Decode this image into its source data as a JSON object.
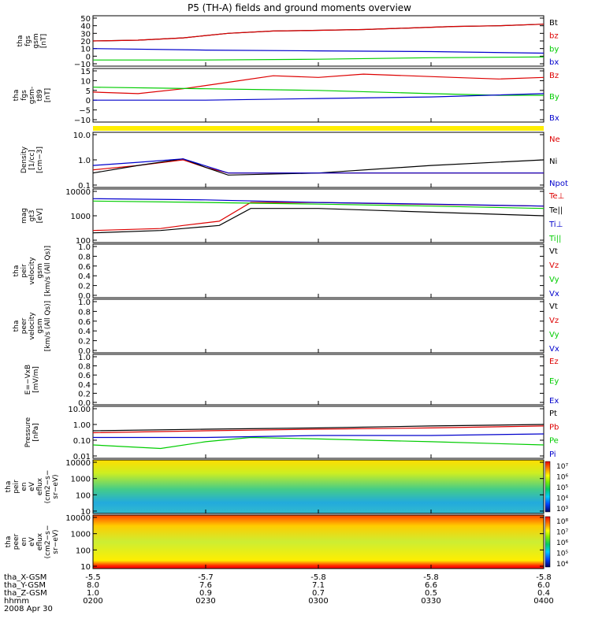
{
  "title": "P5 (TH-A) fields and ground moments overview",
  "date_label": "2008 Apr 30",
  "colors": {
    "black": "#000000",
    "red": "#dd0000",
    "green": "#00cc00",
    "blue": "#0000cc",
    "yellow": "#ffee00",
    "axis": "#000000"
  },
  "x_axis": {
    "row_labels": [
      "tha_X-GSM",
      "tha_Y-GSM",
      "tha_Z-GSM",
      "hhmm"
    ],
    "columns": [
      [
        "-5.5",
        "8.0",
        "1.0",
        "0200"
      ],
      [
        "-5.7",
        "7.6",
        "0.9",
        "0230"
      ],
      [
        "-5.8",
        "7.1",
        "0.7",
        "0300"
      ],
      [
        "-5.8",
        "6.6",
        "0.5",
        "0330"
      ],
      [
        "-5.8",
        "6.0",
        "0.4",
        "0400"
      ]
    ]
  },
  "chart_data": [
    {
      "type": "line",
      "panel": 1,
      "ylabel": [
        "tha",
        "fgs",
        "gsm",
        "[nT]"
      ],
      "yticks": [
        "50",
        "40",
        "30",
        "20",
        "10",
        "0",
        "−10"
      ],
      "ylim": [
        -10,
        50
      ],
      "series": [
        {
          "name": "Bt",
          "color": "#000000",
          "x": [
            0,
            0.1,
            0.2,
            0.3,
            0.4,
            0.5,
            0.6,
            0.7,
            0.8,
            0.9,
            1
          ],
          "y": [
            20,
            21,
            24,
            30,
            33,
            34,
            35,
            37,
            39,
            40,
            42
          ]
        },
        {
          "name": "bz",
          "color": "#dd0000",
          "x": [
            0,
            0.1,
            0.2,
            0.3,
            0.4,
            0.5,
            0.6,
            0.7,
            0.8,
            0.9,
            1
          ],
          "y": [
            20,
            21,
            24,
            30,
            33,
            34,
            35,
            37,
            39,
            40,
            42
          ]
        },
        {
          "name": "by",
          "color": "#00cc00",
          "x": [
            0,
            0.25,
            0.5,
            0.75,
            1
          ],
          "y": [
            -5,
            -5,
            -4,
            -2,
            -1
          ]
        },
        {
          "name": "bx",
          "color": "#0000cc",
          "x": [
            0,
            0.25,
            0.5,
            0.75,
            1
          ],
          "y": [
            10,
            8,
            7,
            6,
            4
          ]
        }
      ]
    },
    {
      "type": "line",
      "panel": 2,
      "ylabel": [
        "tha",
        "fgs",
        "gsm-",
        "t89",
        "[nT]"
      ],
      "yticks": [
        "15",
        "10",
        "5",
        "0",
        "−5",
        "−10"
      ],
      "ylim": [
        -15,
        15
      ],
      "series": [
        {
          "name": "Bz",
          "color": "#dd0000",
          "x": [
            0,
            0.1,
            0.2,
            0.3,
            0.4,
            0.5,
            0.6,
            0.7,
            0.8,
            0.9,
            1
          ],
          "y": [
            2,
            1,
            4,
            8,
            12,
            11,
            13,
            12,
            11,
            10,
            11
          ]
        },
        {
          "name": "By",
          "color": "#00cc00",
          "x": [
            0,
            0.25,
            0.5,
            0.75,
            0.9,
            1
          ],
          "y": [
            5,
            4,
            3,
            1,
            0,
            0
          ]
        },
        {
          "name": "Bx",
          "color": "#0000cc",
          "x": [
            0,
            0.25,
            0.5,
            0.75,
            1
          ],
          "y": [
            -3,
            -3,
            -2,
            -1,
            1
          ]
        }
      ]
    },
    {
      "type": "line",
      "panel": 3,
      "ylabel": [
        "Density",
        "[1/cc]",
        "[cm−3]"
      ],
      "yticks": [
        "10.0",
        "1.0",
        "0.1"
      ],
      "ylim": [
        0.1,
        10
      ],
      "yscale": "log",
      "series": [
        {
          "name": "Ne",
          "color": "#dd0000",
          "x": [
            0,
            0.1,
            0.2,
            0.25,
            0.3,
            0.5,
            1
          ],
          "y": [
            0.4,
            0.6,
            1.0,
            0.5,
            0.3,
            0.3,
            0.3
          ]
        },
        {
          "name": "Ni",
          "color": "#000000",
          "x": [
            0,
            0.1,
            0.2,
            0.25,
            0.3,
            0.5,
            0.75,
            1
          ],
          "y": [
            0.3,
            0.6,
            1.1,
            0.5,
            0.25,
            0.3,
            0.6,
            1.0
          ]
        },
        {
          "name": "Npot",
          "color": "#0000cc",
          "x": [
            0,
            0.1,
            0.2,
            0.3,
            0.5,
            1
          ],
          "y": [
            0.6,
            0.8,
            1.1,
            0.3,
            0.3,
            0.3
          ]
        }
      ]
    },
    {
      "type": "line",
      "panel": 4,
      "ylabel": [
        "mag",
        "gt3",
        "[eV]"
      ],
      "yticks": [
        "10000",
        "1000",
        "100"
      ],
      "ylim": [
        100,
        10000
      ],
      "yscale": "log",
      "series": [
        {
          "name": "Te⊥",
          "color": "#dd0000",
          "x": [
            0,
            0.15,
            0.2,
            0.28,
            0.35,
            0.5,
            0.7,
            1
          ],
          "y": [
            250,
            300,
            400,
            600,
            3500,
            3500,
            3000,
            2500
          ]
        },
        {
          "name": "Te||",
          "color": "#000000",
          "x": [
            0,
            0.15,
            0.2,
            0.28,
            0.35,
            0.5,
            0.7,
            1
          ],
          "y": [
            200,
            250,
            300,
            400,
            2000,
            2000,
            1500,
            1000
          ]
        },
        {
          "name": "Ti⊥",
          "color": "#0000cc",
          "x": [
            0,
            0.25,
            0.5,
            0.75,
            1
          ],
          "y": [
            5000,
            4500,
            3500,
            3000,
            2500
          ]
        },
        {
          "name": "Ti||",
          "color": "#00cc00",
          "x": [
            0,
            0.25,
            0.5,
            0.75,
            1
          ],
          "y": [
            4000,
            3500,
            3000,
            2500,
            2000
          ]
        }
      ]
    },
    {
      "type": "line",
      "panel": 5,
      "ylabel": [
        "tha",
        "peir",
        "velocity",
        "gsm",
        "[km/s (All Qs)]"
      ],
      "yticks": [
        "1.0",
        "0.8",
        "0.6",
        "0.4",
        "0.2",
        "0.0"
      ],
      "ylim": [
        0,
        1
      ],
      "series": [
        {
          "name": "Vt",
          "color": "#000000"
        },
        {
          "name": "Vz",
          "color": "#dd0000"
        },
        {
          "name": "Vy",
          "color": "#00cc00"
        },
        {
          "name": "Vx",
          "color": "#0000cc"
        }
      ]
    },
    {
      "type": "line",
      "panel": 6,
      "ylabel": [
        "tha",
        "peer",
        "velocity",
        "gsm",
        "[km/s (All Qs)]"
      ],
      "yticks": [
        "1.0",
        "0.8",
        "0.6",
        "0.4",
        "0.2",
        "0.0"
      ],
      "ylim": [
        0,
        1
      ],
      "series": [
        {
          "name": "Vt",
          "color": "#000000"
        },
        {
          "name": "Vz",
          "color": "#dd0000"
        },
        {
          "name": "Vy",
          "color": "#00cc00"
        },
        {
          "name": "Vx",
          "color": "#0000cc"
        }
      ]
    },
    {
      "type": "line",
      "panel": 7,
      "ylabel": [
        "E=−VxB",
        "[mV/m]"
      ],
      "yticks": [
        "1.0",
        "0.8",
        "0.6",
        "0.4",
        "0.2",
        "0.0"
      ],
      "ylim": [
        0,
        1
      ],
      "series": [
        {
          "name": "Ez",
          "color": "#dd0000"
        },
        {
          "name": "Ey",
          "color": "#00cc00"
        },
        {
          "name": "Ex",
          "color": "#0000cc"
        }
      ]
    },
    {
      "type": "line",
      "panel": 8,
      "ylabel": [
        "Pressure",
        "[nPa]"
      ],
      "yticks": [
        "10.00",
        "1.00",
        "0.10",
        "0.01"
      ],
      "ylim": [
        0.01,
        10
      ],
      "yscale": "log",
      "series": [
        {
          "name": "Pt",
          "color": "#000000",
          "x": [
            0,
            0.25,
            0.5,
            0.75,
            1
          ],
          "y": [
            0.4,
            0.5,
            0.6,
            0.8,
            1.0
          ]
        },
        {
          "name": "Pb",
          "color": "#dd0000",
          "x": [
            0,
            0.25,
            0.5,
            0.75,
            1
          ],
          "y": [
            0.3,
            0.4,
            0.5,
            0.6,
            0.8
          ]
        },
        {
          "name": "Pe",
          "color": "#00cc00",
          "x": [
            0,
            0.15,
            0.25,
            0.35,
            0.5,
            0.75,
            1
          ],
          "y": [
            0.05,
            0.03,
            0.08,
            0.15,
            0.12,
            0.08,
            0.05
          ]
        },
        {
          "name": "Pi",
          "color": "#0000cc",
          "x": [
            0,
            0.25,
            0.5,
            0.75,
            1
          ],
          "y": [
            0.15,
            0.15,
            0.2,
            0.2,
            0.25
          ]
        }
      ]
    },
    {
      "type": "heatmap",
      "panel": 9,
      "ylabel": [
        "tha",
        "peir",
        "en",
        "eV",
        "eflux",
        "(cm2−s−",
        "sr−eV)"
      ],
      "yticks": [
        "10000",
        "1000",
        "100",
        "10"
      ],
      "yscale": "log",
      "colorbar_ticks": [
        "10⁷",
        "10⁶",
        "10⁵",
        "10⁴",
        "10³"
      ]
    },
    {
      "type": "heatmap",
      "panel": 10,
      "ylabel": [
        "tha",
        "peer",
        "en",
        "eV",
        "eflux",
        "(cm2−s−",
        "sr−eV)"
      ],
      "yticks": [
        "10000",
        "1000",
        "100",
        "10"
      ],
      "yscale": "log",
      "colorbar_ticks": [
        "10⁸",
        "10⁷",
        "10⁶",
        "10⁵",
        "10⁴"
      ]
    }
  ]
}
